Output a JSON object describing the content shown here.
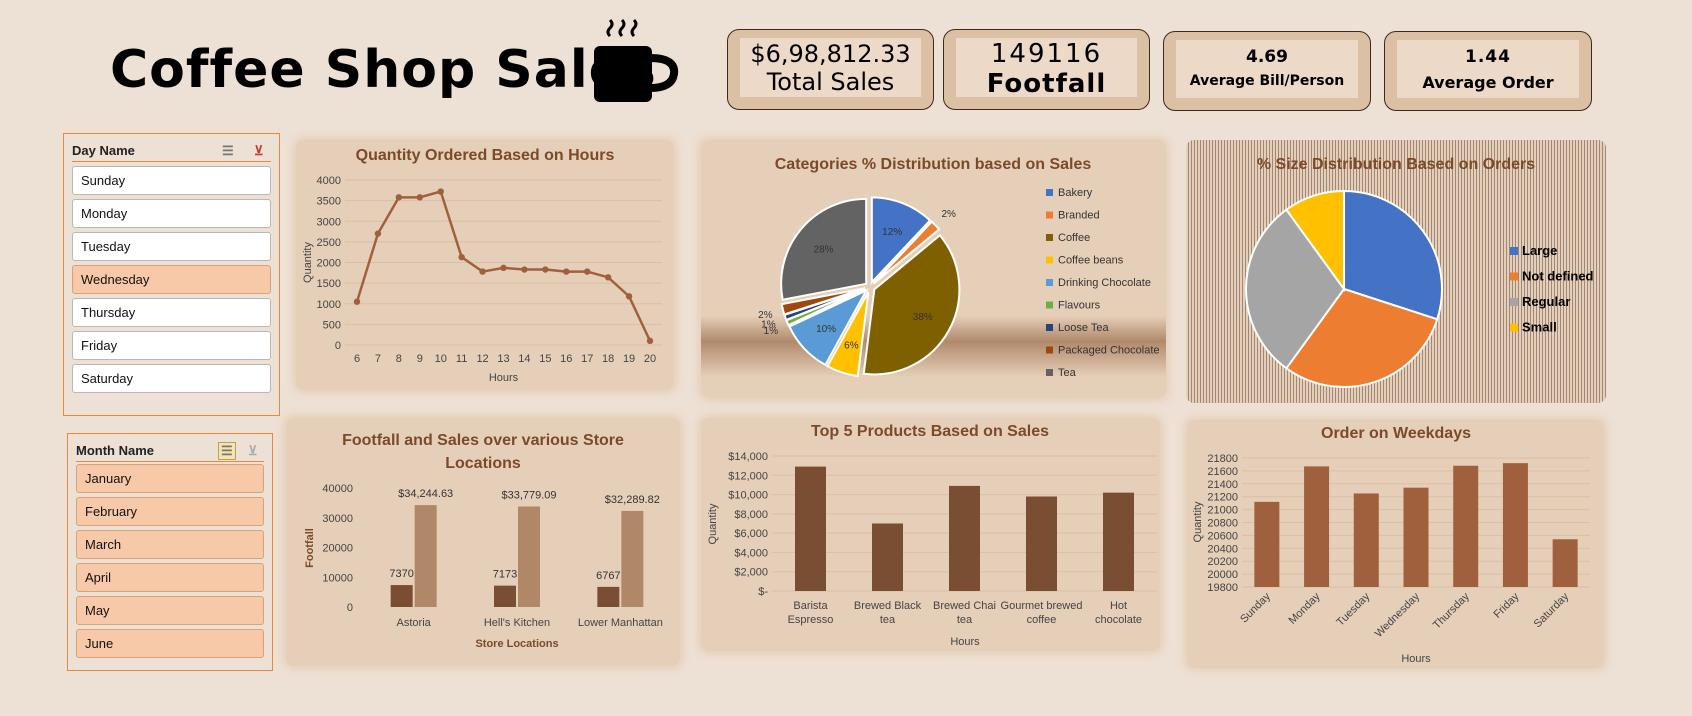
{
  "title": "Coffee Shop Sales",
  "kpis": [
    {
      "value": "$6,98,812.33",
      "label": "Total Sales"
    },
    {
      "value": "149116",
      "label": "Footfall"
    },
    {
      "value": "4.69",
      "label": "Average Bill/Person"
    },
    {
      "value": "1.44",
      "label": "Average Order"
    }
  ],
  "day_slicer": {
    "header": "Day Name",
    "items": [
      {
        "label": "Sunday",
        "selected": false
      },
      {
        "label": "Monday",
        "selected": false
      },
      {
        "label": "Tuesday",
        "selected": false
      },
      {
        "label": "Wednesday",
        "selected": true
      },
      {
        "label": "Thursday",
        "selected": false
      },
      {
        "label": "Friday",
        "selected": false
      },
      {
        "label": "Saturday",
        "selected": false
      }
    ]
  },
  "month_slicer": {
    "header": "Month Name",
    "items": [
      {
        "label": "January",
        "selected": true
      },
      {
        "label": "February",
        "selected": true
      },
      {
        "label": "March",
        "selected": true
      },
      {
        "label": "April",
        "selected": true
      },
      {
        "label": "May",
        "selected": true
      },
      {
        "label": "June",
        "selected": true
      }
    ]
  },
  "colors": {
    "brown": "#a0603d",
    "dark_brown": "#7a4e32",
    "light_brown": "#b08868",
    "accent": "#e8893c"
  },
  "chart_data": [
    {
      "type": "line",
      "title": "Quantity Ordered Based on Hours",
      "xlabel": "Hours",
      "ylabel": "Quantity",
      "x": [
        6,
        7,
        8,
        9,
        10,
        11,
        12,
        13,
        14,
        15,
        16,
        17,
        18,
        19,
        20
      ],
      "values": [
        1050,
        2700,
        3580,
        3580,
        3720,
        2130,
        1780,
        1870,
        1830,
        1830,
        1780,
        1780,
        1640,
        1180,
        100
      ],
      "yticks": [
        "0",
        "500",
        "1000",
        "1500",
        "2000",
        "2500",
        "3000",
        "3500",
        "4000"
      ],
      "ylim": [
        0,
        4000
      ]
    },
    {
      "type": "pie",
      "title": "Categories % Distribution based on Sales",
      "categories": [
        "Bakery",
        "Branded",
        "Coffee",
        "Coffee beans",
        "Drinking Chocolate",
        "Flavours",
        "Loose Tea",
        "Packaged Chocolate",
        "Tea"
      ],
      "values": [
        12,
        2,
        38,
        6,
        10,
        1,
        1,
        2,
        28
      ],
      "labels": [
        "12%",
        "2%",
        "38%",
        "6%",
        "10%",
        "1%",
        "1%",
        "2%",
        "28%"
      ],
      "colors": [
        "#4472c4",
        "#ed7d31",
        "#7f6000",
        "#ffc000",
        "#5b9bd5",
        "#70ad47",
        "#264478",
        "#9e480e",
        "#636363"
      ],
      "legend": "right"
    },
    {
      "type": "pie",
      "title": "% Size Distribution Based on Orders",
      "categories": [
        "Large",
        "Not defined",
        "Regular",
        "Small"
      ],
      "values": [
        30,
        30,
        30,
        10
      ],
      "colors": [
        "#4472c4",
        "#ed7d31",
        "#a5a5a5",
        "#ffc000"
      ],
      "legend": "right"
    },
    {
      "type": "bar",
      "title": "Footfall and Sales over various Store Locations",
      "xlabel": "Store Locations",
      "ylabel": "Footfall",
      "categories": [
        "Astoria",
        "Hell's Kitchen",
        "Lower Manhattan"
      ],
      "series": [
        {
          "values": [
            7370,
            7173,
            6767
          ],
          "labels": [
            "7370",
            "7173",
            "6767"
          ]
        },
        {
          "values": [
            34244.63,
            33779.09,
            32289.82
          ],
          "labels": [
            "$34,244.63",
            "$33,779.09",
            "$32,289.82"
          ]
        }
      ],
      "yticks": [
        "0",
        "10000",
        "20000",
        "30000",
        "40000"
      ],
      "ylim": [
        0,
        40000
      ]
    },
    {
      "type": "bar",
      "title": "Top 5 Products Based on Sales",
      "xlabel": "Hours",
      "ylabel": "Quantity",
      "categories": [
        "Barista Espresso",
        "Brewed Black tea",
        "Brewed Chai tea",
        "Gourmet brewed coffee",
        "Hot chocolate"
      ],
      "values": [
        12900,
        7000,
        10900,
        9800,
        10200
      ],
      "yticks": [
        "$-",
        "$2,000",
        "$4,000",
        "$6,000",
        "$8,000",
        "$10,000",
        "$12,000",
        "$14,000"
      ],
      "ylim": [
        0,
        14000
      ]
    },
    {
      "type": "bar",
      "title": "Order on Weekdays",
      "xlabel": "Hours",
      "ylabel": "Quantity",
      "categories": [
        "Sunday",
        "Monday",
        "Tuesday",
        "Wednesday",
        "Thursday",
        "Friday",
        "Saturday"
      ],
      "values": [
        21120,
        21670,
        21250,
        21340,
        21680,
        21720,
        20540
      ],
      "yticks": [
        "19800",
        "20000",
        "20200",
        "20400",
        "20600",
        "20800",
        "21000",
        "21200",
        "21400",
        "21600",
        "21800"
      ],
      "ylim": [
        19800,
        21800
      ]
    }
  ]
}
